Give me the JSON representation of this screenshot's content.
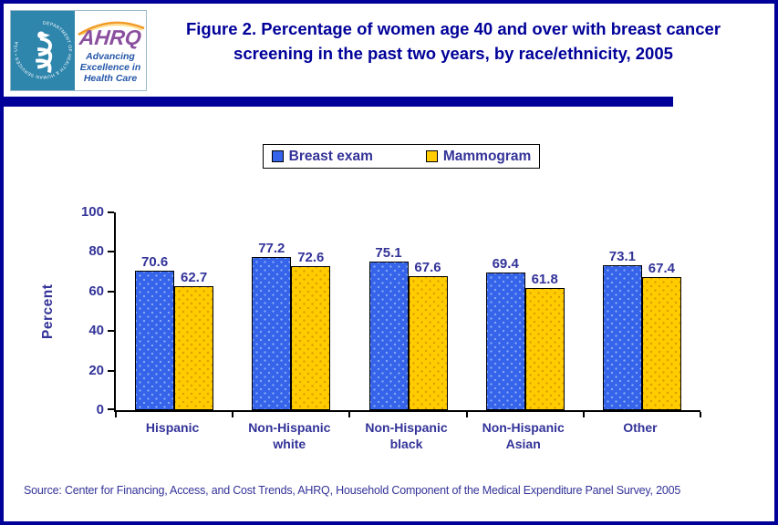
{
  "colors": {
    "accent_navy": "#000099",
    "label_navy": "#333399",
    "bar_blue": "#3563e9",
    "bar_blue_dot": "#85a9f5",
    "bar_yellow": "#ffcc00",
    "bar_yellow_dot": "#dd9c00",
    "hhs_teal": "#2f86ad",
    "ahrq_purple": "#8a4f9e",
    "swoosh_orange": "#f29b26",
    "tagline_blue": "#2456a8",
    "axis_black": "#000000"
  },
  "header": {
    "logo": {
      "hhs_ring_text": "DEPARTMENT OF HEALTH & HUMAN SERVICES • USA",
      "ahrq_acronym": "AHRQ",
      "ahrq_tagline": "Advancing\nExcellence in\nHealth Care"
    },
    "title": "Figure 2. Percentage  of women age 40 and over with breast cancer screening in the past two years, by race/ethnicity, 2005"
  },
  "chart_data": {
    "type": "bar",
    "title": "Figure 2. Percentage of women age 40 and over with breast cancer screening in the past two years, by race/ethnicity, 2005",
    "categories": [
      "Hispanic",
      "Non-Hispanic white",
      "Non-Hispanic black",
      "Non-Hispanic Asian",
      "Other"
    ],
    "series": [
      {
        "name": "Breast exam",
        "values": [
          70.6,
          77.2,
          75.1,
          69.4,
          73.1
        ]
      },
      {
        "name": "Mammogram",
        "values": [
          62.7,
          72.6,
          67.6,
          61.8,
          67.4
        ]
      }
    ],
    "ylabel": "Percent",
    "ylim": [
      0,
      100
    ],
    "yticks": [
      0,
      20,
      40,
      60,
      80,
      100
    ],
    "legend_position": "top-center",
    "grid": false,
    "value_labels": true
  },
  "source": "Source: Center for Financing, Access, and Cost Trends, AHRQ, Household Component of the Medical Expenditure Panel Survey, 2005"
}
